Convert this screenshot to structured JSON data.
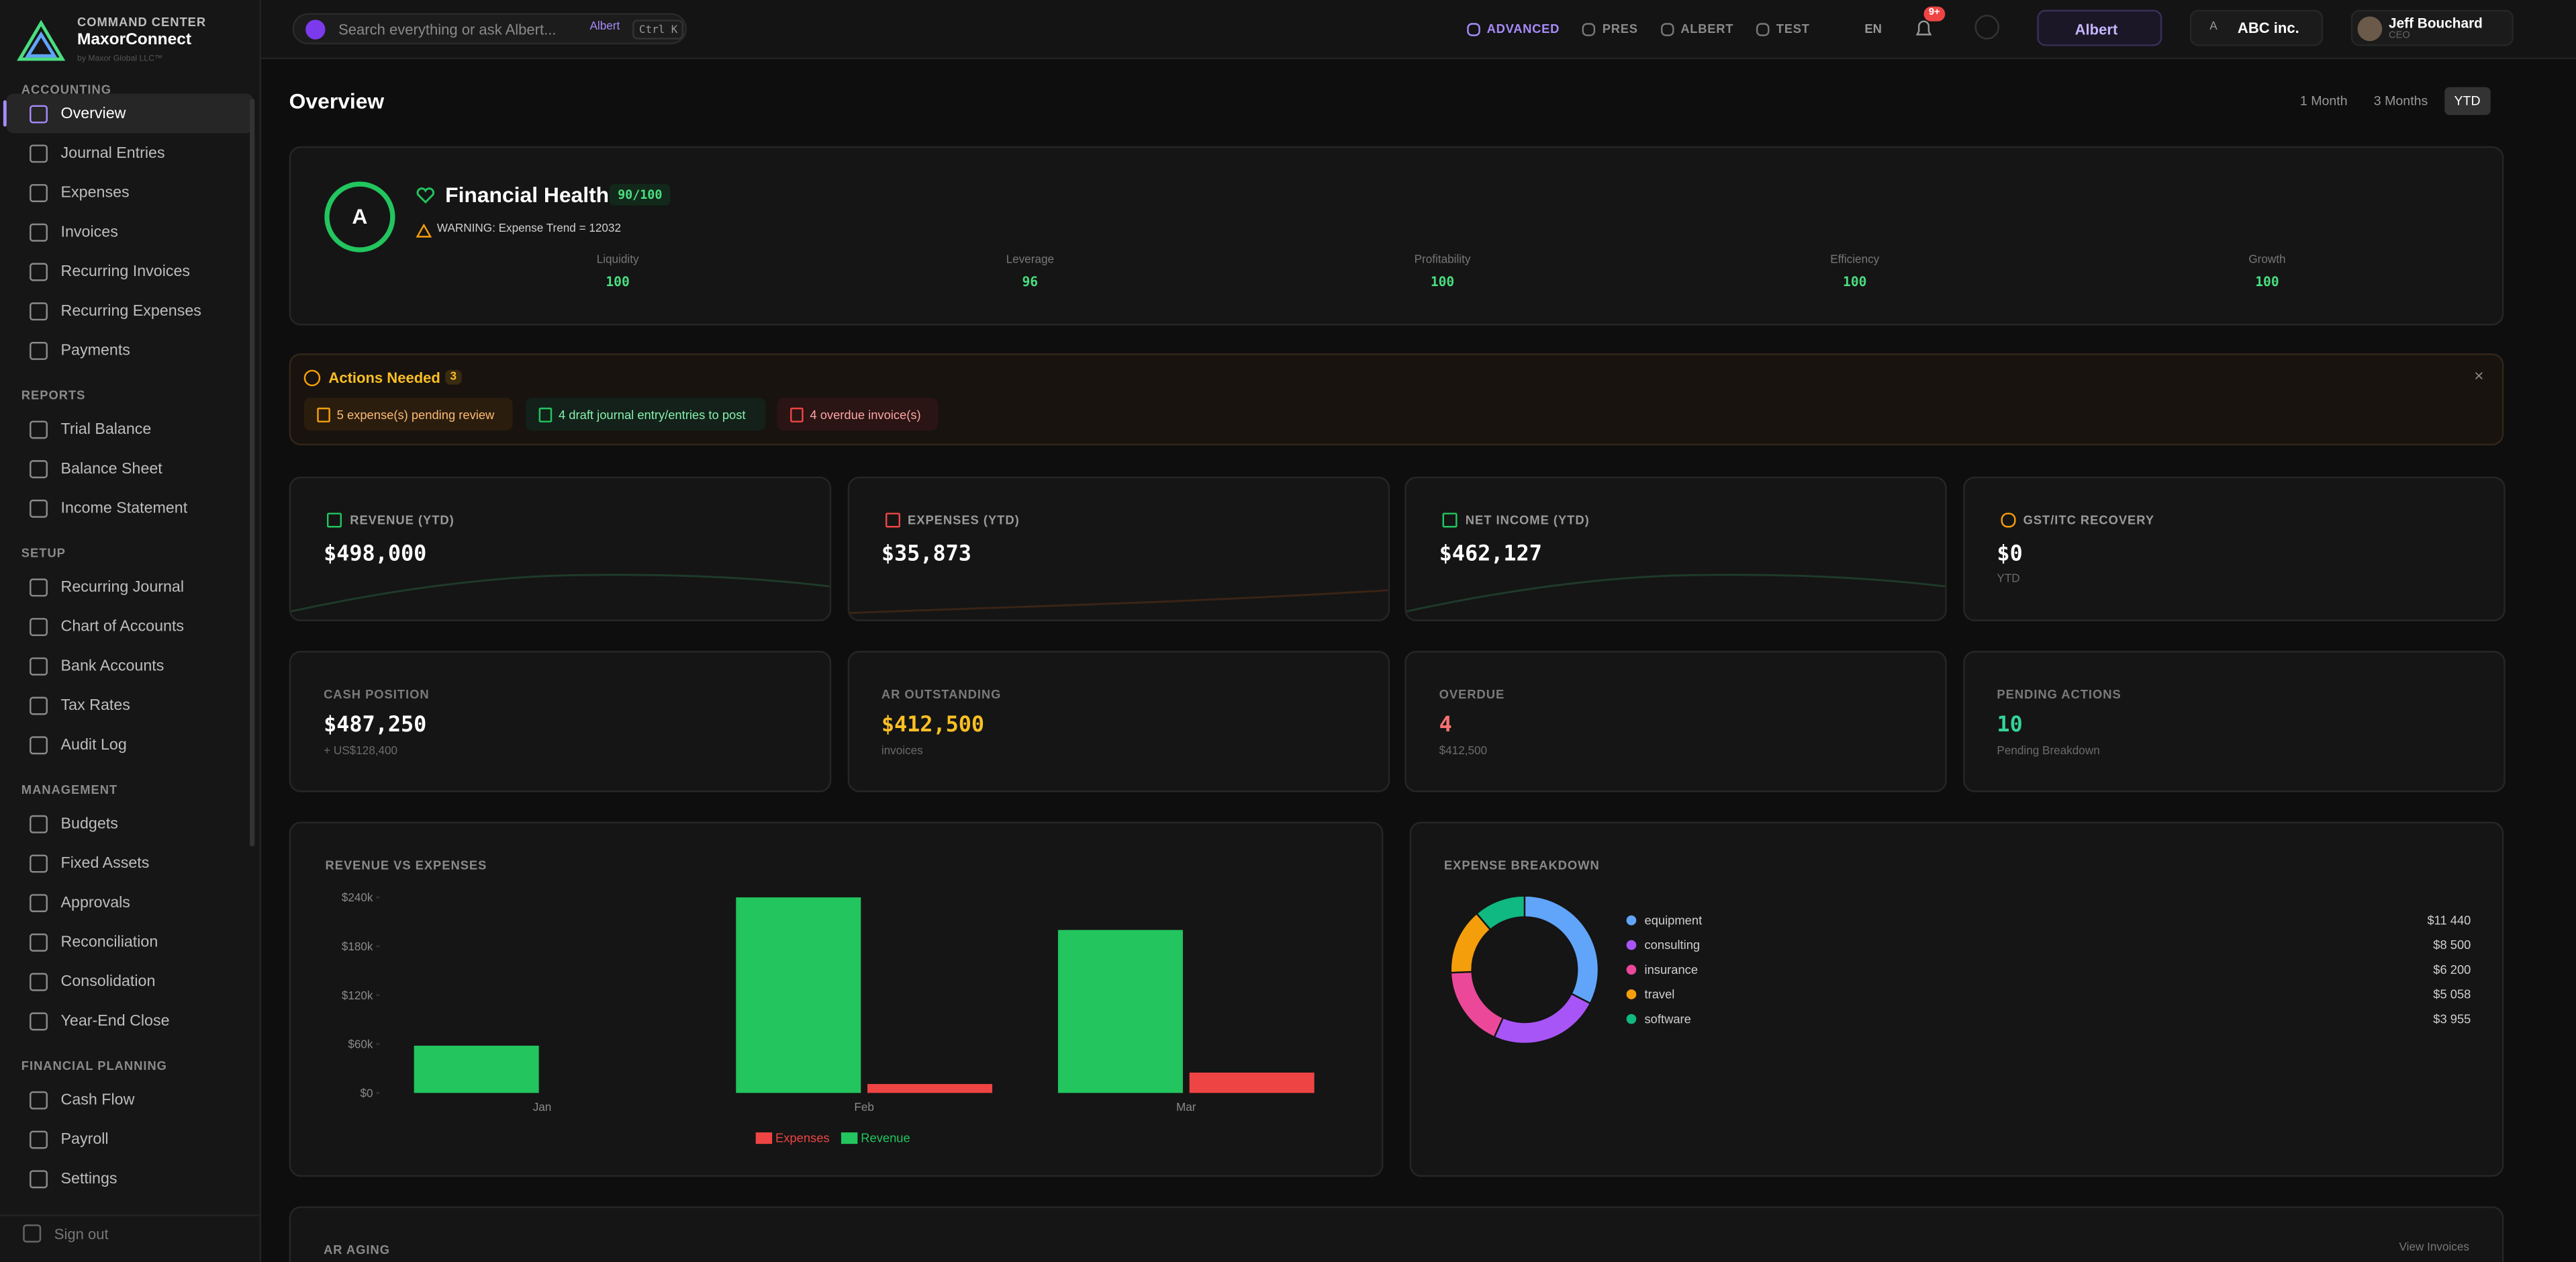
{
  "brand": {
    "kicker": "COMMAND CENTER",
    "name": "MaxorConnect",
    "sub": "by Maxor Global LLC™"
  },
  "sidebar": {
    "sections": [
      {
        "title": "ACCOUNTING",
        "items": [
          "Overview",
          "Journal Entries",
          "Expenses",
          "Invoices",
          "Recurring Invoices",
          "Recurring Expenses",
          "Payments"
        ]
      },
      {
        "title": "REPORTS",
        "items": [
          "Trial Balance",
          "Balance Sheet",
          "Income Statement"
        ]
      },
      {
        "title": "SETUP",
        "items": [
          "Recurring Journal",
          "Chart of Accounts",
          "Bank Accounts",
          "Tax Rates",
          "Audit Log"
        ]
      },
      {
        "title": "MANAGEMENT",
        "items": [
          "Budgets",
          "Fixed Assets",
          "Approvals",
          "Reconciliation",
          "Consolidation",
          "Year-End Close"
        ]
      },
      {
        "title": "FINANCIAL PLANNING",
        "items": [
          "Cash Flow",
          "Payroll",
          "Settings"
        ]
      }
    ],
    "signout": "Sign out"
  },
  "topbar": {
    "search": "Search everything or ask Albert...",
    "albert_chip": "Albert",
    "shortcut": "Ctrl K",
    "modes": [
      "ADVANCED",
      "PRES",
      "ALBERT",
      "TEST"
    ],
    "lang": "EN",
    "badge": "9+",
    "albert_button": "Albert",
    "company_initial": "A",
    "company": "ABC inc.",
    "user": "Jeff Bouchard",
    "role": "CEO"
  },
  "page": {
    "title": "Overview",
    "ranges": [
      "1 Month",
      "3 Months",
      "YTD"
    ]
  },
  "health": {
    "grade": "A",
    "title": "Financial Health",
    "score": "90/100",
    "warning": "WARNING: Expense Trend = 12032",
    "metrics": [
      {
        "label": "Liquidity",
        "value": "100"
      },
      {
        "label": "Leverage",
        "value": "96"
      },
      {
        "label": "Profitability",
        "value": "100"
      },
      {
        "label": "Efficiency",
        "value": "100"
      },
      {
        "label": "Growth",
        "value": "100"
      }
    ]
  },
  "actions": {
    "title": "Actions Needed",
    "count": "3",
    "items": [
      "5 expense(s) pending review",
      "4 draft journal entry/entries to post",
      "4 overdue invoice(s)"
    ]
  },
  "kpis": [
    {
      "label": "REVENUE (YTD)",
      "value": "$498,000"
    },
    {
      "label": "EXPENSES (YTD)",
      "value": "$35,873"
    },
    {
      "label": "NET INCOME (YTD)",
      "value": "$462,127"
    },
    {
      "label": "GST/ITC RECOVERY",
      "value": "$0",
      "sub": "YTD"
    },
    {
      "label": "CASH POSITION",
      "value": "$487,250",
      "sub": "+ US$128,400"
    },
    {
      "label": "AR OUTSTANDING",
      "value": "$412,500",
      "sub": "invoices"
    },
    {
      "label": "OVERDUE",
      "value": "4",
      "sub": "$412,500"
    },
    {
      "label": "PENDING ACTIONS",
      "value": "10",
      "sub": "Pending Breakdown"
    }
  ],
  "chart_data": [
    {
      "type": "bar",
      "title": "REVENUE VS EXPENSES",
      "categories": [
        "Jan",
        "Feb",
        "Mar"
      ],
      "series": [
        {
          "name": "Expenses",
          "color": "#ef4444",
          "values": [
            0,
            11000,
            25000
          ]
        },
        {
          "name": "Revenue",
          "color": "#22c55e",
          "values": [
            58000,
            240000,
            200000
          ]
        }
      ],
      "ylim": [
        0,
        240000
      ],
      "yticks": [
        {
          "value": 0,
          "label": "$0"
        },
        {
          "value": 60000,
          "label": "$60k"
        },
        {
          "value": 120000,
          "label": "$120k"
        },
        {
          "value": 180000,
          "label": "$180k"
        },
        {
          "value": 240000,
          "label": "$240k"
        }
      ]
    },
    {
      "type": "pie",
      "title": "EXPENSE BREAKDOWN",
      "categories": [
        "equipment",
        "consulting",
        "insurance",
        "travel",
        "software"
      ],
      "values": [
        11440,
        8500,
        6200,
        5058,
        3955
      ],
      "value_labels": [
        "$11 440",
        "$8 500",
        "$6 200",
        "$5 058",
        "$3 955"
      ],
      "colors": [
        "#60a5fa",
        "#a855f7",
        "#ec4899",
        "#f59e0b",
        "#10b981"
      ],
      "donut": true
    }
  ],
  "ar_aging": {
    "title": "AR AGING",
    "link": "View Invoices"
  }
}
